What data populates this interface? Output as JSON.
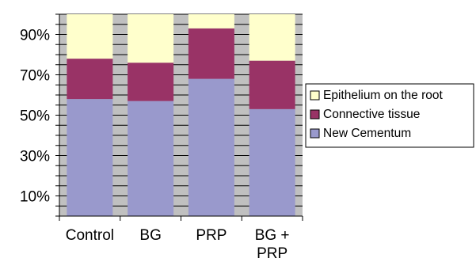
{
  "chart_data": {
    "type": "bar",
    "stacked": true,
    "percent": true,
    "categories": [
      "Control",
      "BG",
      "BG + PRP",
      "PRP"
    ],
    "category_order": [
      "Control",
      "BG",
      "PRP",
      "BG + PRP"
    ],
    "series": [
      {
        "name": "New Cementum",
        "values": [
          58,
          57,
          53,
          68
        ],
        "color": "#9999cc"
      },
      {
        "name": "Connective tissue",
        "values": [
          20,
          19,
          24,
          25
        ],
        "color": "#993366"
      },
      {
        "name": "Epithelium on the root",
        "values": [
          22,
          24,
          23,
          7
        ],
        "color": "#ffffcc"
      }
    ],
    "ylim": [
      0,
      100
    ],
    "y_ticks": [
      "10%",
      "30%",
      "50%",
      "70%",
      "90%"
    ],
    "y_tick_values": [
      10,
      30,
      50,
      70,
      90
    ],
    "legend_order": [
      "Epithelium on the root",
      "Connective tissue",
      "New Cementum"
    ],
    "legend_placement": "right",
    "plot_background": "#c0c0c0",
    "gridlines": true
  }
}
